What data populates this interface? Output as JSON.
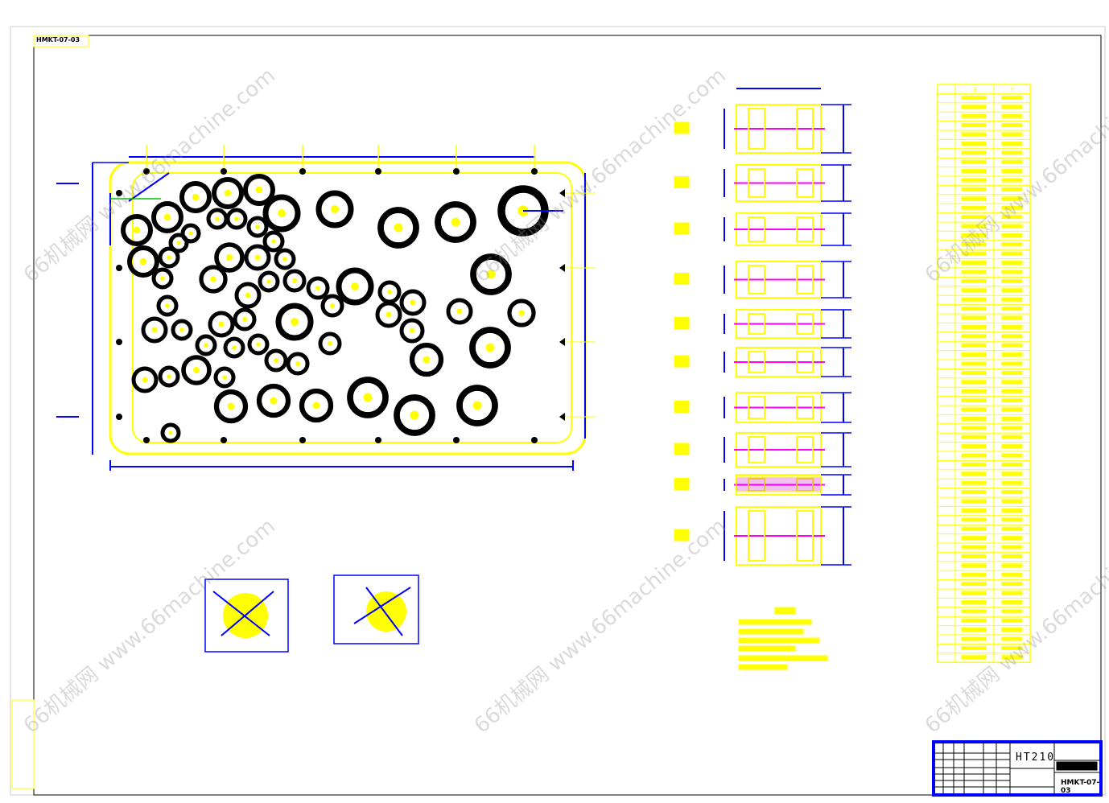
{
  "drawing": {
    "drawing_number": "HMKT-07-03",
    "material": "HT210",
    "coordinate_table": {
      "columns": [
        "X",
        "Y"
      ],
      "row_count": 63
    },
    "watermark": "66机械网 www.66machine.com",
    "colors": {
      "outline": "#ffff00",
      "dimension": "#0000ff",
      "hole": "#000000",
      "centerline": "#ff00ff",
      "section_line": "#00c000"
    }
  }
}
